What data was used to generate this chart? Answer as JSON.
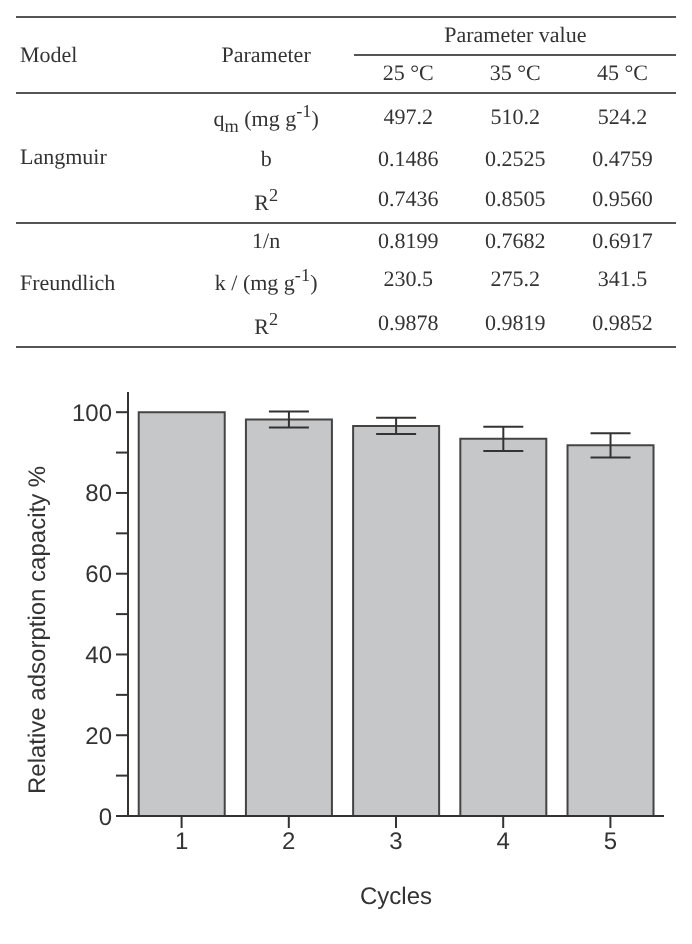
{
  "chart_data": [
    {
      "type": "other",
      "annotations": [
        "Model",
        "Parameter",
        "Parameter value",
        "25 °C",
        "35 °C",
        "45 °C",
        "Langmuir",
        "q$_{m}$ (mg g$^{-1}$)",
        "497.2",
        "510.2",
        "524.2",
        "b",
        "0.1486",
        "0.2525",
        "0.4759",
        "R$^{2}$",
        "0.7436",
        "0.8505",
        "0.9560",
        "Freundlich",
        "1/n",
        "0.8199",
        "0.7682",
        "0.6917",
        "k / (mg g$^{-1}$)",
        "230.5",
        "275.2",
        "341.5",
        "R$^{2}$",
        "0.9878",
        "0.9819",
        "0.9852"
      ]
    },
    {
      "type": "bar",
      "xlabel": "Cycles",
      "ylabel": "Relative adsorption capacity %",
      "categories": [
        "1",
        "2",
        "3",
        "4",
        "5"
      ],
      "values": [
        100,
        98.2,
        96.6,
        93.4,
        91.8
      ],
      "errors": [
        null,
        2,
        2,
        3,
        3
      ],
      "color": "#c5c7c9",
      "ylim": [
        0,
        105
      ],
      "yticks": [
        0,
        {
          "value": 10,
          "label": null
        },
        20,
        {
          "value": 30,
          "label": null
        },
        40,
        {
          "value": 50,
          "label": null
        },
        60,
        {
          "value": 70,
          "label": null
        },
        80,
        {
          "value": 90,
          "label": null
        },
        100
      ],
      "grid": false,
      "legend": false
    }
  ]
}
